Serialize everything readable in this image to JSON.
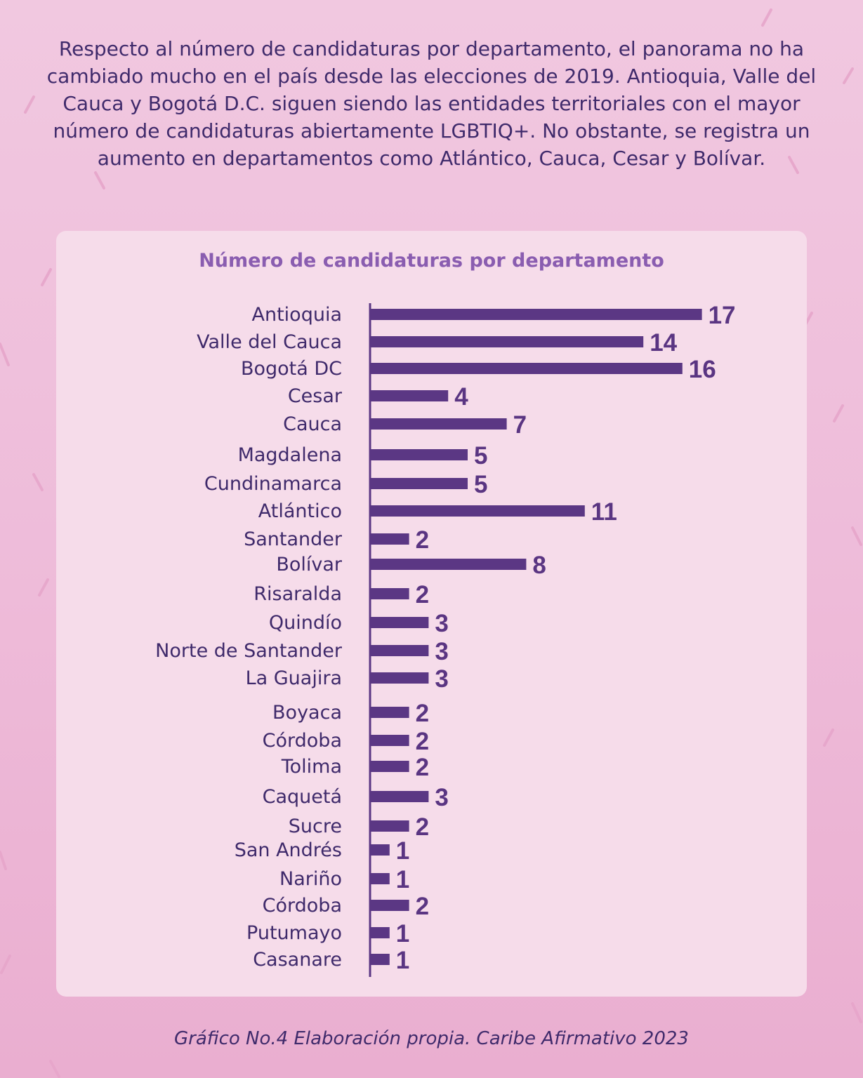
{
  "intro_text": "Respecto al número de candidaturas por departamento, el panorama no ha cambiado mucho en el país desde las elecciones de 2019. Antioquia, Valle del Cauca y Bogotá D.C. siguen siendo las entidades territoriales con el mayor número de candidaturas abiertamente LGBTIQ+. No obstante, se registra un aumento en departamentos como Atlántico, Cauca, Cesar y Bolívar.",
  "caption": "Gráfico No.4 Elaboración propia. Caribe Afirmativo 2023",
  "colors": {
    "bar": "#5b3784",
    "value_label": "#5a3582",
    "title": "#8a5db0",
    "text": "#3f2a6b",
    "card": "#f6dcea",
    "background": "#efc2dc"
  },
  "chart_data": {
    "type": "bar",
    "orientation": "horizontal",
    "title": "Número de candidaturas por departamento",
    "xlabel": "",
    "ylabel": "",
    "grid": false,
    "legend": "none",
    "categories": [
      "Antioquia",
      "Valle del Cauca",
      "Bogotá DC",
      "Cesar",
      "Cauca",
      "Magdalena",
      "Cundinamarca",
      "Atlántico",
      "Santander",
      "Bolívar",
      "Risaralda",
      "Quindío",
      "Norte de Santander",
      "La Guajira",
      "Boyaca",
      "Córdoba",
      "Tolima",
      "Caquetá",
      "Sucre",
      "San Andrés",
      "Nariño",
      "Córdoba",
      "Putumayo",
      "Casanare"
    ],
    "values": [
      17,
      14,
      16,
      4,
      7,
      5,
      5,
      11,
      2,
      8,
      2,
      3,
      3,
      3,
      2,
      2,
      2,
      3,
      2,
      1,
      1,
      2,
      1,
      1
    ]
  }
}
